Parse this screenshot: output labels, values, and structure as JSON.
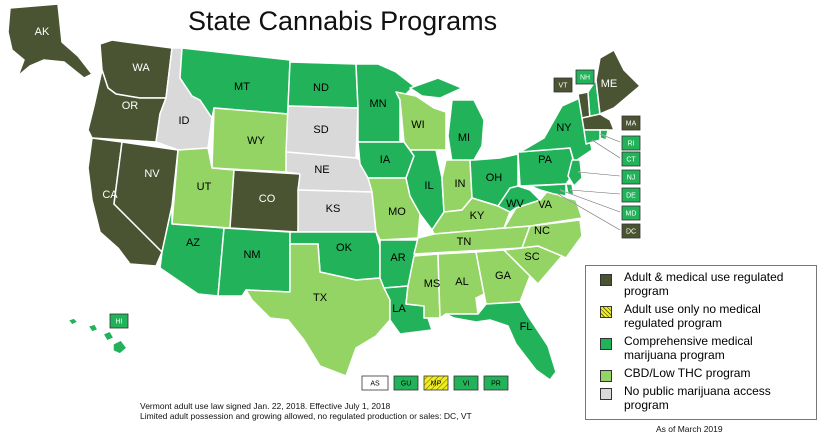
{
  "title": "State Cannabis Programs",
  "colors": {
    "adult_medical": "#4a5332",
    "adult_only": "#f2ee1c",
    "comprehensive": "#22b25a",
    "cbd_low_thc": "#93d465",
    "none": "#d9d9d9"
  },
  "states": {
    "AK": "AK",
    "WA": "WA",
    "OR": "OR",
    "CA": "CA",
    "NV": "NV",
    "ID": "ID",
    "MT": "MT",
    "WY": "WY",
    "UT": "UT",
    "CO": "CO",
    "AZ": "AZ",
    "NM": "NM",
    "ND": "ND",
    "SD": "SD",
    "NE": "NE",
    "KS": "KS",
    "OK": "OK",
    "TX": "TX",
    "MN": "MN",
    "IA": "IA",
    "MO": "MO",
    "AR": "AR",
    "LA": "LA",
    "WI": "WI",
    "IL": "IL",
    "MS": "MS",
    "MI": "MI",
    "IN": "IN",
    "KY": "KY",
    "TN": "TN",
    "AL": "AL",
    "OH": "OH",
    "GA": "GA",
    "FL": "FL",
    "SC": "SC",
    "NC": "NC",
    "VA": "VA",
    "WV": "WV",
    "PA": "PA",
    "NY": "NY",
    "VT": "VT",
    "NH": "NH",
    "ME": "ME",
    "MA": "MA",
    "RI": "RI",
    "CT": "CT",
    "NJ": "NJ",
    "DE": "DE",
    "MD": "MD",
    "DC": "DC",
    "HI": "HI"
  },
  "territories": {
    "AS": "AS",
    "GU": "GU",
    "MP": "MP",
    "VI": "VI",
    "PR": "PR"
  },
  "legend": [
    {
      "label": "Adult & medical use regulated program",
      "color": "#4a5332"
    },
    {
      "label": "Adult use only no medical regulated program",
      "color": "#f2ee1c"
    },
    {
      "label": "Comprehensive medical marijuana program",
      "color": "#22b25a"
    },
    {
      "label": "CBD/Low THC program",
      "color": "#93d465"
    },
    {
      "label": "No public marijuana access program",
      "color": "#d9d9d9"
    }
  ],
  "notes": {
    "line1": "Vermont adult use law signed Jan. 22, 2018. Effective July 1, 2018",
    "line2": "Limited adult possession and growing allowed, no regulated production or sales: DC, VT"
  },
  "as_of": "As of March 2019"
}
